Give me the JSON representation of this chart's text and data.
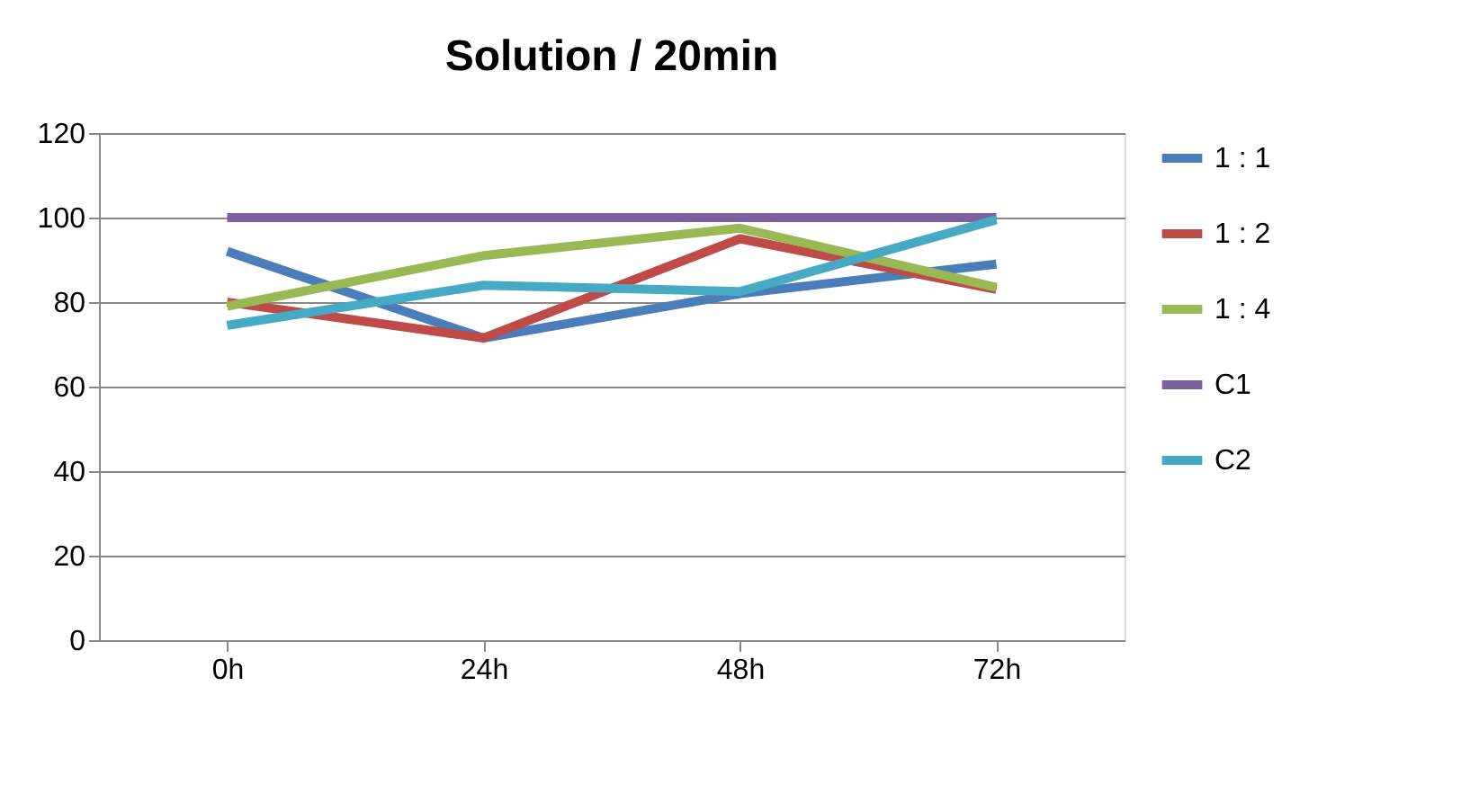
{
  "chart_data": {
    "type": "line",
    "title": "Solution / 20min",
    "categories": [
      "0h",
      "24h",
      "48h",
      "72h"
    ],
    "series": [
      {
        "name": "1 : 1",
        "color": "#4a7ebb",
        "values": [
          92,
          71.5,
          82,
          89
        ]
      },
      {
        "name": "1 : 2",
        "color": "#be4b48",
        "values": [
          80,
          71.5,
          95,
          83
        ]
      },
      {
        "name": "1 : 4",
        "color": "#98b954",
        "values": [
          79,
          91,
          97.5,
          83.5
        ]
      },
      {
        "name": "C1",
        "color": "#7d60a0",
        "values": [
          100,
          100,
          100,
          100
        ]
      },
      {
        "name": "C2",
        "color": "#46aac5",
        "values": [
          74.5,
          84,
          82.5,
          99.5
        ]
      }
    ],
    "ylim": [
      0,
      120
    ],
    "yticks": [
      0,
      20,
      40,
      60,
      80,
      100,
      120
    ],
    "grid": "y",
    "legend": "right",
    "marker": "none",
    "line_style": "solid"
  }
}
